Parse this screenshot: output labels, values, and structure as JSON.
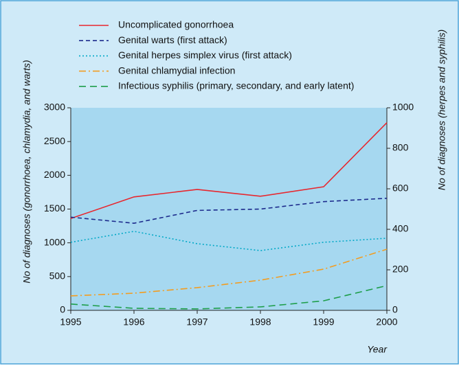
{
  "chart_data": {
    "type": "line",
    "x": [
      1995,
      1996,
      1997,
      1998,
      1999,
      2000
    ],
    "xlim": [
      1995,
      2000
    ],
    "xticks": [
      1995,
      1996,
      1997,
      1998,
      1999,
      2000
    ],
    "ylim": [
      0,
      3000
    ],
    "yticks": [
      0,
      500,
      1000,
      1500,
      2000,
      2500,
      3000
    ],
    "y2lim": [
      0,
      1000
    ],
    "y2ticks": [
      0,
      200,
      400,
      600,
      800,
      1000
    ],
    "xlabel": "Year",
    "ylabel": "No of diagnoses (gonorrhoea, chlamydia, and warts)",
    "y2label": "No of diagnoses (herpes and syphilis)",
    "series": [
      {
        "name": "Uncomplicated gonorrhoea",
        "color": "#e8262d",
        "dash": "solid",
        "values": [
          1360,
          1680,
          1790,
          1690,
          1830,
          2780
        ]
      },
      {
        "name": "Genital warts (first attack)",
        "color": "#1c2a8c",
        "dash": "dashed",
        "values": [
          1380,
          1290,
          1480,
          1500,
          1610,
          1660
        ]
      },
      {
        "name": "Genital herpes simplex virus (first attack)",
        "color": "#00a8c6",
        "dash": "dotted",
        "axis": "y2",
        "values": [
          336,
          390,
          329,
          295,
          336,
          356
        ]
      },
      {
        "name": "Genital chlamydial infection",
        "color": "#f39c1f",
        "dash": "dashdot",
        "values": [
          214,
          254,
          336,
          447,
          610,
          905
        ]
      },
      {
        "name": "Infectious syphilis (primary, secondary, and early latent)",
        "color": "#1e9e4a",
        "dash": "longdash",
        "axis": "y2",
        "values": [
          31,
          10,
          7,
          17,
          47,
          122
        ]
      }
    ]
  }
}
